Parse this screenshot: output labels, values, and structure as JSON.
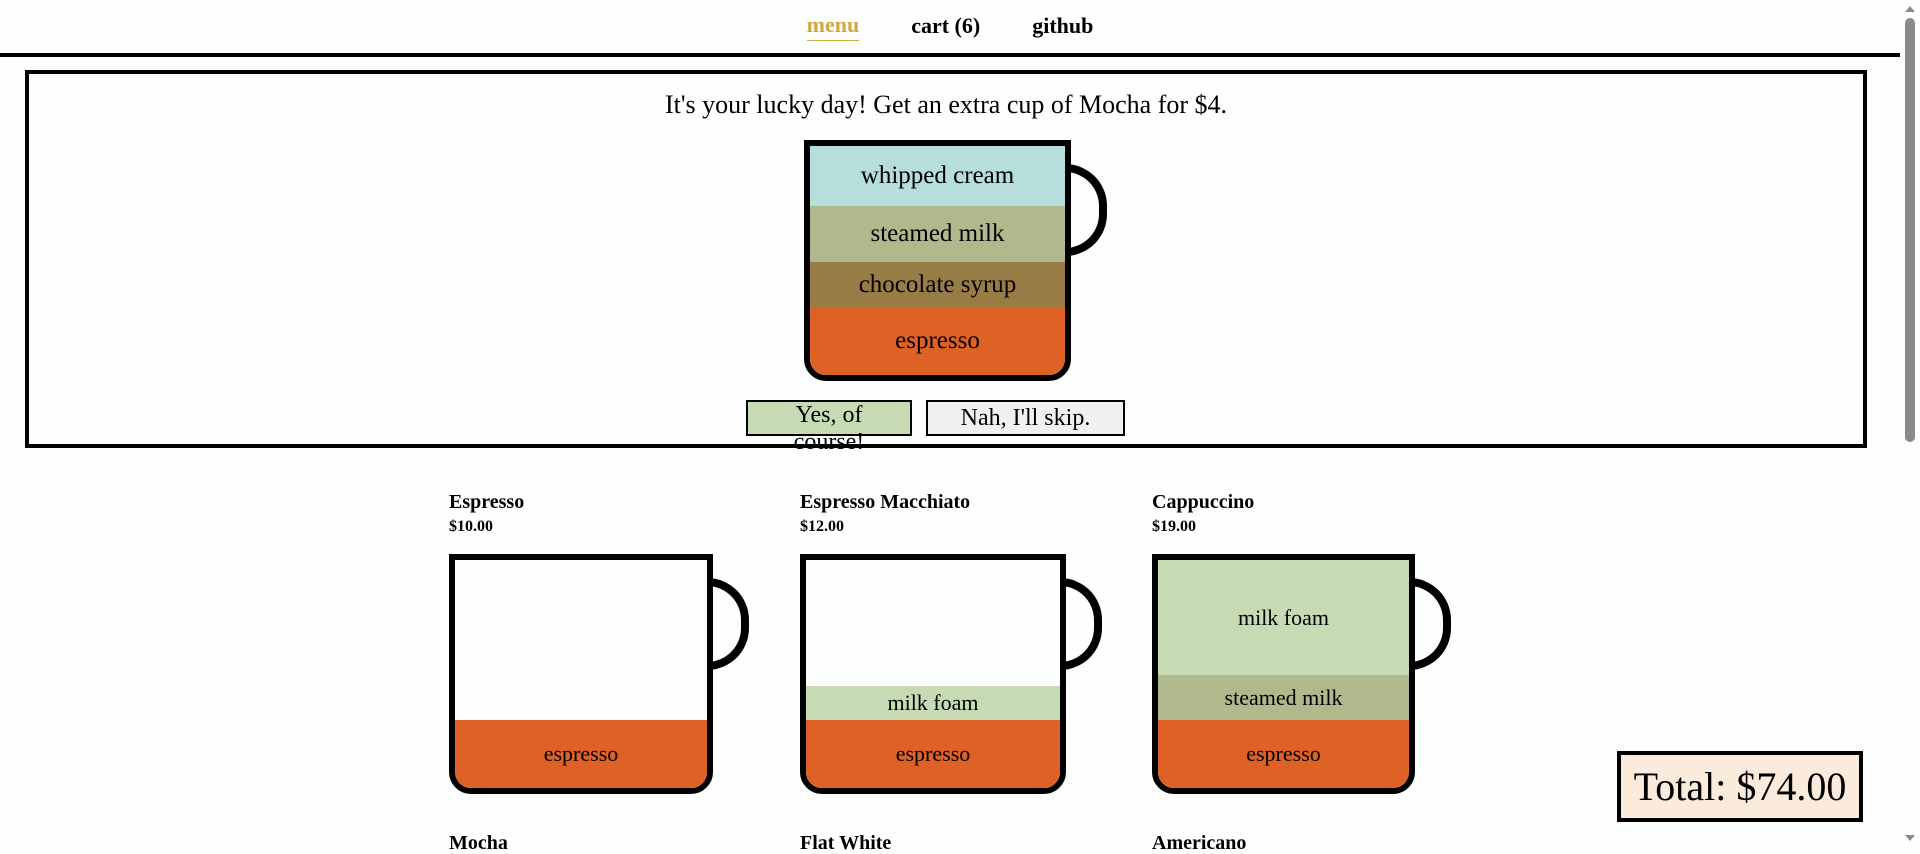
{
  "nav": {
    "menu": "menu",
    "cart": "cart (6)",
    "github": "github"
  },
  "promo": {
    "text": "It's your lucky day! Get an extra cup of Mocha for $4.",
    "layers": [
      "whipped cream",
      "steamed milk",
      "chocolate syrup",
      "espresso"
    ],
    "yes_label": "Yes, of course!",
    "no_label": "Nah, I'll skip."
  },
  "menu": {
    "items": [
      {
        "name": "Espresso",
        "price": "$10.00",
        "layers": [
          "espresso"
        ]
      },
      {
        "name": "Espresso Macchiato",
        "price": "$12.00",
        "layers": [
          "milk foam",
          "espresso"
        ]
      },
      {
        "name": "Cappuccino",
        "price": "$19.00",
        "layers": [
          "milk foam",
          "steamed milk",
          "espresso"
        ]
      },
      {
        "name": "Mocha"
      },
      {
        "name": "Flat White"
      },
      {
        "name": "Americano"
      }
    ]
  },
  "total": "Total: $74.00",
  "colors": {
    "espresso": "#de6126",
    "milk_foam": "#c6dbb3",
    "steamed_milk": "#b0b98b",
    "chocolate_syrup": "#987c46",
    "whipped_cream": "#b5dedc",
    "nav_active": "#d4a73f",
    "total_bg": "#fbebdc"
  }
}
